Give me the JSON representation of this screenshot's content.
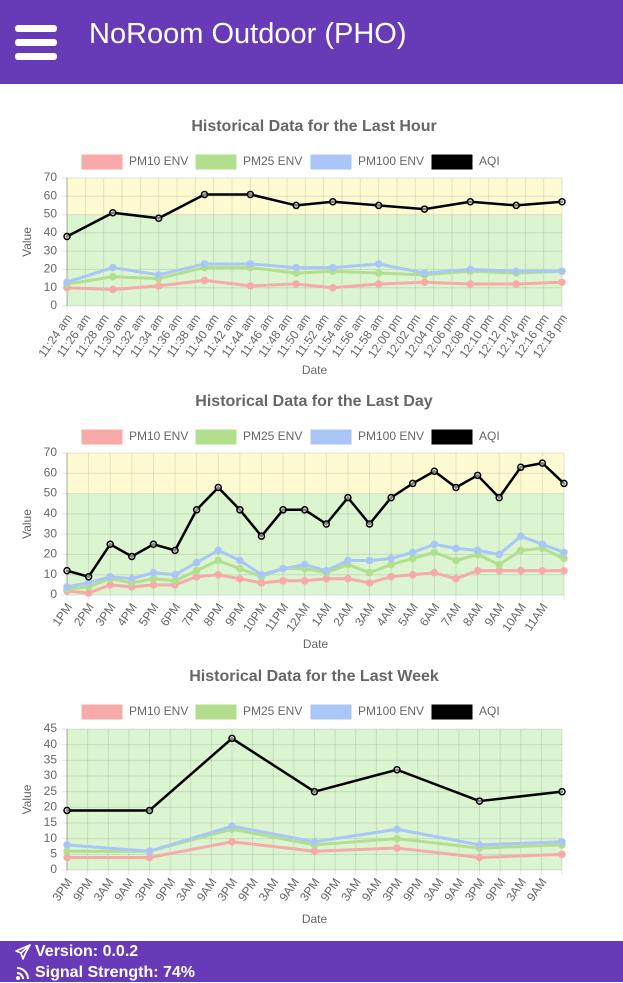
{
  "header": {
    "title": "NoRoom Outdoor (PHO)"
  },
  "chart_data": [
    {
      "type": "line",
      "title": "Historical Data for the Last Hour",
      "x_label": "Date",
      "y_label": "Value",
      "xticks": [
        "11:24 am",
        "11:26 am",
        "11:28 am",
        "11:30 am",
        "11:32 am",
        "11:34 am",
        "11:36 am",
        "11:38 am",
        "11:40 am",
        "11:42 am",
        "11:44 am",
        "11:46 am",
        "11:48 am",
        "11:50 am",
        "11:52 am",
        "11:54 am",
        "11:56 am",
        "11:58 am",
        "12:00 pm",
        "12:02 pm",
        "12:04 pm",
        "12:06 pm",
        "12:08 pm",
        "12:10 pm",
        "12:12 pm",
        "12:14 pm",
        "12:16 pm",
        "12:18 pm"
      ],
      "xlim": [
        "11:24 am",
        "12:18 pm"
      ],
      "x": [
        "11:24 am",
        "11:29 am",
        "11:34 am",
        "11:39 am",
        "11:44 am",
        "11:49 am",
        "11:53 am",
        "11:58 am",
        "12:03 pm",
        "12:08 pm",
        "12:13 pm",
        "12:18 pm"
      ],
      "series": [
        {
          "name": "PM10 ENV",
          "color": "#f7aaa8",
          "values": [
            10,
            9,
            11,
            14,
            11,
            12,
            10,
            12,
            13,
            12,
            12,
            13
          ]
        },
        {
          "name": "PM25 ENV",
          "color": "#b2df8e",
          "values": [
            12,
            16,
            15,
            21,
            21,
            18,
            19,
            18,
            17,
            19,
            18,
            19
          ]
        },
        {
          "name": "PM100 ENV",
          "color": "#a9c6f6",
          "values": [
            13,
            21,
            17,
            23,
            23,
            21,
            21,
            23,
            18,
            20,
            19,
            19
          ]
        },
        {
          "name": "AQI",
          "color": "#000000",
          "values": [
            38,
            51,
            48,
            61,
            61,
            55,
            57,
            55,
            53,
            57,
            55,
            57
          ]
        }
      ],
      "ylim": [
        0,
        70
      ],
      "yticks": [
        0,
        10,
        20,
        30,
        40,
        50,
        60,
        70
      ],
      "grid": true,
      "span_gaps": true,
      "bands": [
        {
          "from": 0,
          "to": 50,
          "color": "#dbf5d1"
        },
        {
          "from": 50,
          "to": 100,
          "color": "#fefbd3"
        }
      ]
    },
    {
      "type": "line",
      "title": "Historical Data for the Last Day",
      "x_label": "Date",
      "y_label": "Value",
      "categories": [
        "1PM",
        "2PM",
        "3PM",
        "4PM",
        "5PM",
        "6PM",
        "7PM",
        "8PM",
        "9PM",
        "10PM",
        "11PM",
        "12AM",
        "1AM",
        "2AM",
        "3AM",
        "4AM",
        "5AM",
        "6AM",
        "7AM",
        "8AM",
        "9AM",
        "10AM",
        "11AM",
        null
      ],
      "series": [
        {
          "name": "PM10 ENV",
          "color": "#f7aaa8",
          "values": [
            2,
            1,
            5,
            4,
            5,
            5,
            9,
            10,
            8,
            6,
            7,
            7,
            8,
            8,
            6,
            9,
            10,
            11,
            8,
            12,
            12,
            12,
            12,
            12
          ]
        },
        {
          "name": "PM25 ENV",
          "color": "#b2df8e",
          "values": [
            3,
            4,
            8,
            6,
            8,
            7,
            12,
            17,
            13,
            9,
            13,
            13,
            11,
            15,
            11,
            15,
            18,
            21,
            17,
            20,
            15,
            22,
            23,
            18
          ]
        },
        {
          "name": "PM100 ENV",
          "color": "#a9c6f6",
          "values": [
            4,
            6,
            9,
            8,
            11,
            10,
            16,
            22,
            17,
            10,
            13,
            15,
            12,
            17,
            17,
            18,
            21,
            25,
            23,
            22,
            20,
            29,
            25,
            21
          ]
        },
        {
          "name": "AQI",
          "color": "#000000",
          "values": [
            12,
            9,
            25,
            19,
            25,
            22,
            42,
            53,
            42,
            29,
            42,
            42,
            35,
            48,
            35,
            48,
            55,
            61,
            53,
            59,
            48,
            63,
            65,
            55
          ]
        }
      ],
      "ylim": [
        0,
        70
      ],
      "yticks": [
        0,
        10,
        20,
        30,
        40,
        50,
        60,
        70
      ],
      "grid": true,
      "span_gaps": true,
      "bands": [
        {
          "from": 0,
          "to": 50,
          "color": "#dbf5d1"
        },
        {
          "from": 50,
          "to": 100,
          "color": "#fefbd3"
        }
      ]
    },
    {
      "type": "line",
      "title": "Historical Data for the Last Week",
      "x_label": "Date",
      "y_label": "Value",
      "categories": [
        "3PM",
        "9PM",
        "3AM",
        "9AM",
        "3PM",
        "9PM",
        "3AM",
        "9AM",
        "3PM",
        "9PM",
        "3AM",
        "9AM",
        "3PM",
        "9PM",
        "3AM",
        "9AM",
        "3PM",
        "9PM",
        "3AM",
        "9AM",
        "3PM",
        "9PM",
        "3AM",
        "9AM",
        null
      ],
      "series": [
        {
          "name": "PM10 ENV",
          "color": "#f7aaa8",
          "values": [
            4,
            null,
            null,
            null,
            4,
            null,
            null,
            null,
            9,
            null,
            null,
            null,
            6,
            null,
            null,
            null,
            7,
            null,
            null,
            null,
            4,
            null,
            null,
            null,
            5
          ]
        },
        {
          "name": "PM25 ENV",
          "color": "#b2df8e",
          "values": [
            6,
            null,
            null,
            null,
            6,
            null,
            null,
            null,
            13,
            null,
            null,
            null,
            8,
            null,
            null,
            null,
            10,
            null,
            null,
            null,
            7,
            null,
            null,
            null,
            8
          ]
        },
        {
          "name": "PM100 ENV",
          "color": "#a9c6f6",
          "values": [
            8,
            null,
            null,
            null,
            6,
            null,
            null,
            null,
            14,
            null,
            null,
            null,
            9,
            null,
            null,
            null,
            13,
            null,
            null,
            null,
            8,
            null,
            null,
            null,
            9
          ]
        },
        {
          "name": "AQI",
          "color": "#000000",
          "values": [
            19,
            null,
            null,
            null,
            19,
            null,
            null,
            null,
            42,
            null,
            null,
            null,
            25,
            null,
            null,
            null,
            32,
            null,
            null,
            null,
            22,
            null,
            null,
            null,
            25
          ]
        }
      ],
      "ylim": [
        0,
        45
      ],
      "yticks": [
        0,
        5,
        10,
        15,
        20,
        25,
        30,
        35,
        40,
        45
      ],
      "grid": true,
      "span_gaps": true,
      "bands": [
        {
          "from": 0,
          "to": 50,
          "color": "#dbf5d1"
        },
        {
          "from": 50,
          "to": 100,
          "color": "#fefbd3"
        }
      ]
    }
  ],
  "footer": {
    "version": "Version: 0.0.2",
    "signal": "Signal Strength: 74%"
  }
}
